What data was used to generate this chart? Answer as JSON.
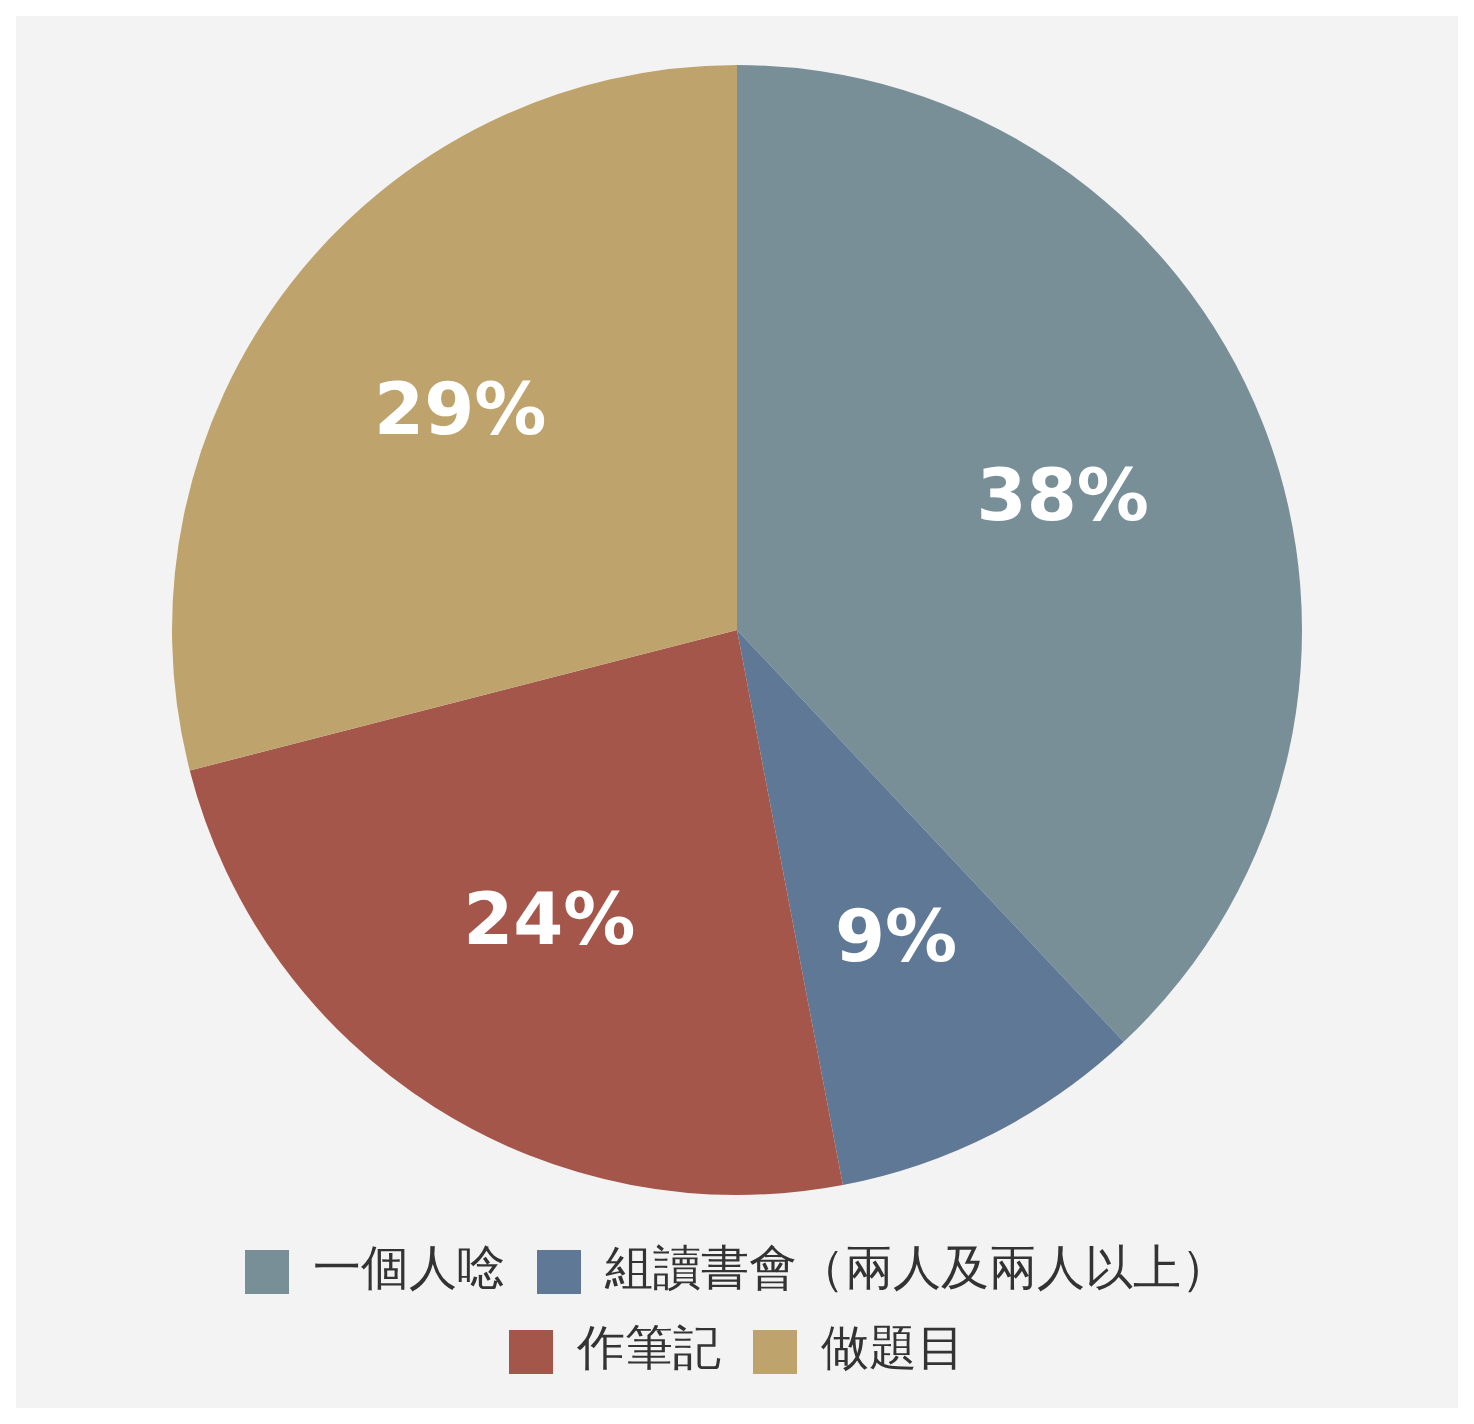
{
  "chart_data": {
    "type": "pie",
    "categories": [
      "一個人唸",
      "組讀書會（兩人及兩人以上）",
      "作筆記",
      "做題目"
    ],
    "values": [
      38,
      9,
      24,
      29
    ],
    "colors": [
      "#788f98",
      "#5f7895",
      "#a5564b",
      "#bea46c"
    ],
    "value_labels": [
      "38%",
      "9%",
      "24%",
      "29%"
    ],
    "legend": "bottom"
  }
}
